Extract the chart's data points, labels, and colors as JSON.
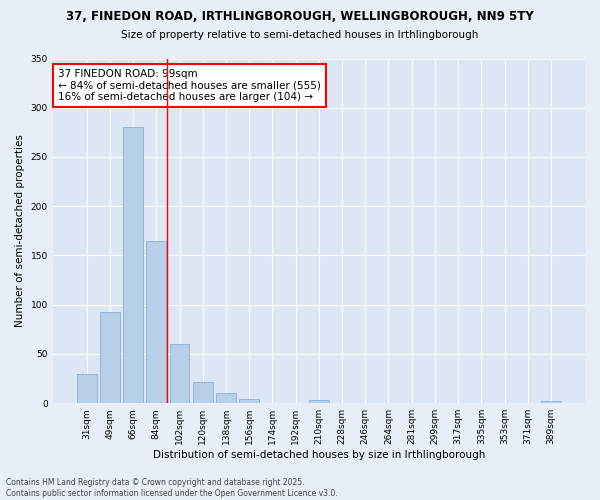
{
  "title_line1": "37, FINEDON ROAD, IRTHLINGBOROUGH, WELLINGBOROUGH, NN9 5TY",
  "title_line2": "Size of property relative to semi-detached houses in Irthlingborough",
  "xlabel": "Distribution of semi-detached houses by size in Irthlingborough",
  "ylabel": "Number of semi-detached properties",
  "categories": [
    "31sqm",
    "49sqm",
    "66sqm",
    "84sqm",
    "102sqm",
    "120sqm",
    "138sqm",
    "156sqm",
    "174sqm",
    "192sqm",
    "210sqm",
    "228sqm",
    "246sqm",
    "264sqm",
    "281sqm",
    "299sqm",
    "317sqm",
    "335sqm",
    "353sqm",
    "371sqm",
    "389sqm"
  ],
  "values": [
    30,
    93,
    280,
    165,
    60,
    22,
    10,
    4,
    0,
    0,
    3,
    0,
    0,
    0,
    0,
    0,
    0,
    0,
    0,
    0,
    2
  ],
  "bar_color": "#b8cfe8",
  "bar_edge_color": "#7aaad0",
  "red_line_index": 3.44,
  "annotation_title": "37 FINEDON ROAD: 99sqm",
  "annotation_line1": "← 84% of semi-detached houses are smaller (555)",
  "annotation_line2": "16% of semi-detached houses are larger (104) →",
  "ylim": [
    0,
    350
  ],
  "yticks": [
    0,
    50,
    100,
    150,
    200,
    250,
    300,
    350
  ],
  "fig_bg_color": "#e8eef8",
  "plot_bg_color": "#dce6f5",
  "footer_line1": "Contains HM Land Registry data © Crown copyright and database right 2025.",
  "footer_line2": "Contains public sector information licensed under the Open Government Licence v3.0."
}
